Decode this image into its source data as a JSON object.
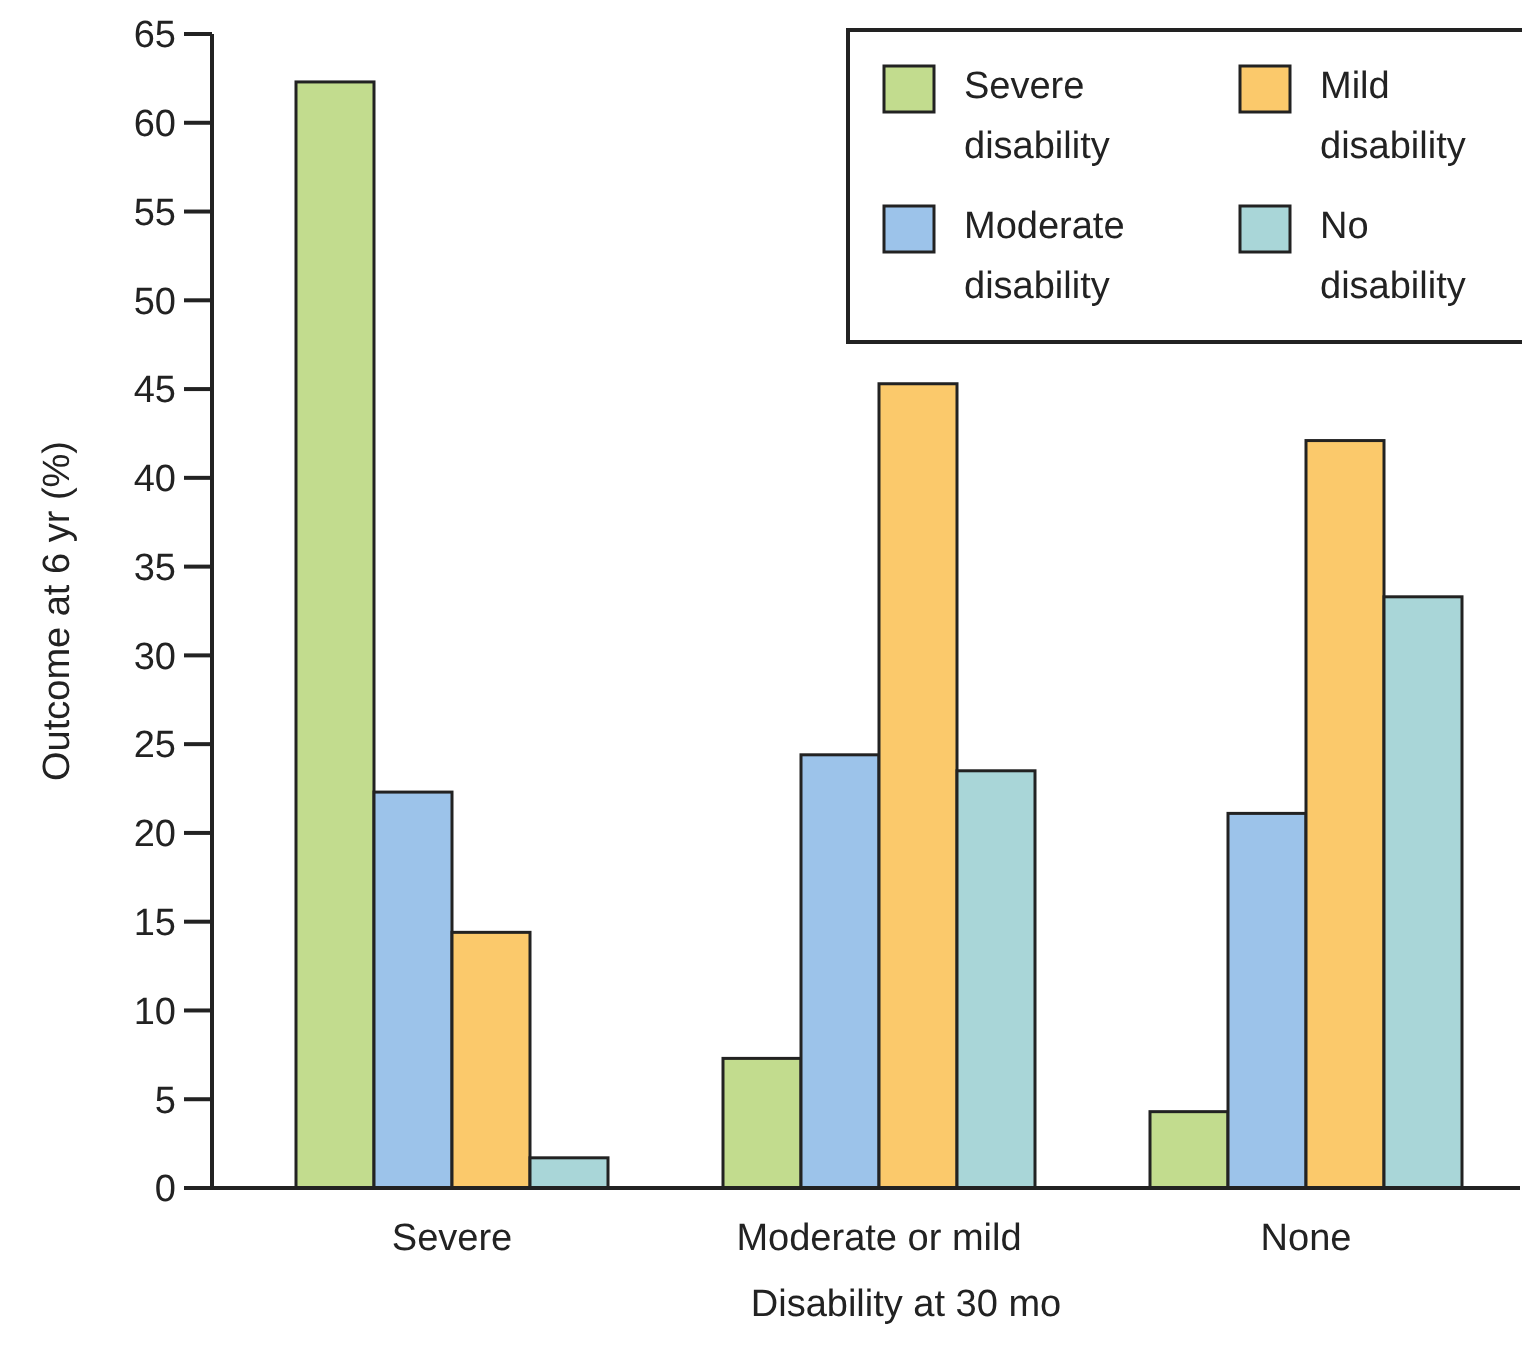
{
  "chart_data": {
    "type": "bar",
    "xlabel": "Disability at 30 mo",
    "ylabel": "Outcome at 6 yr (%)",
    "categories": [
      "Severe",
      "Moderate or mild",
      "None"
    ],
    "series": [
      {
        "name": "Severe disability",
        "color": "#c2dc8e",
        "values": [
          62.3,
          7.3,
          4.3
        ]
      },
      {
        "name": "Moderate disability",
        "color": "#9cc3ea",
        "values": [
          22.3,
          24.4,
          21.1
        ]
      },
      {
        "name": "Mild disability",
        "color": "#fbc96b",
        "values": [
          14.4,
          45.3,
          42.1
        ]
      },
      {
        "name": "No disability",
        "color": "#a9d6d8",
        "values": [
          1.7,
          23.5,
          33.3
        ]
      }
    ],
    "ylim": [
      0,
      65
    ],
    "yticks": [
      0,
      5,
      10,
      15,
      20,
      25,
      30,
      35,
      40,
      45,
      50,
      55,
      60,
      65
    ],
    "grid": false,
    "legend": "top right"
  }
}
